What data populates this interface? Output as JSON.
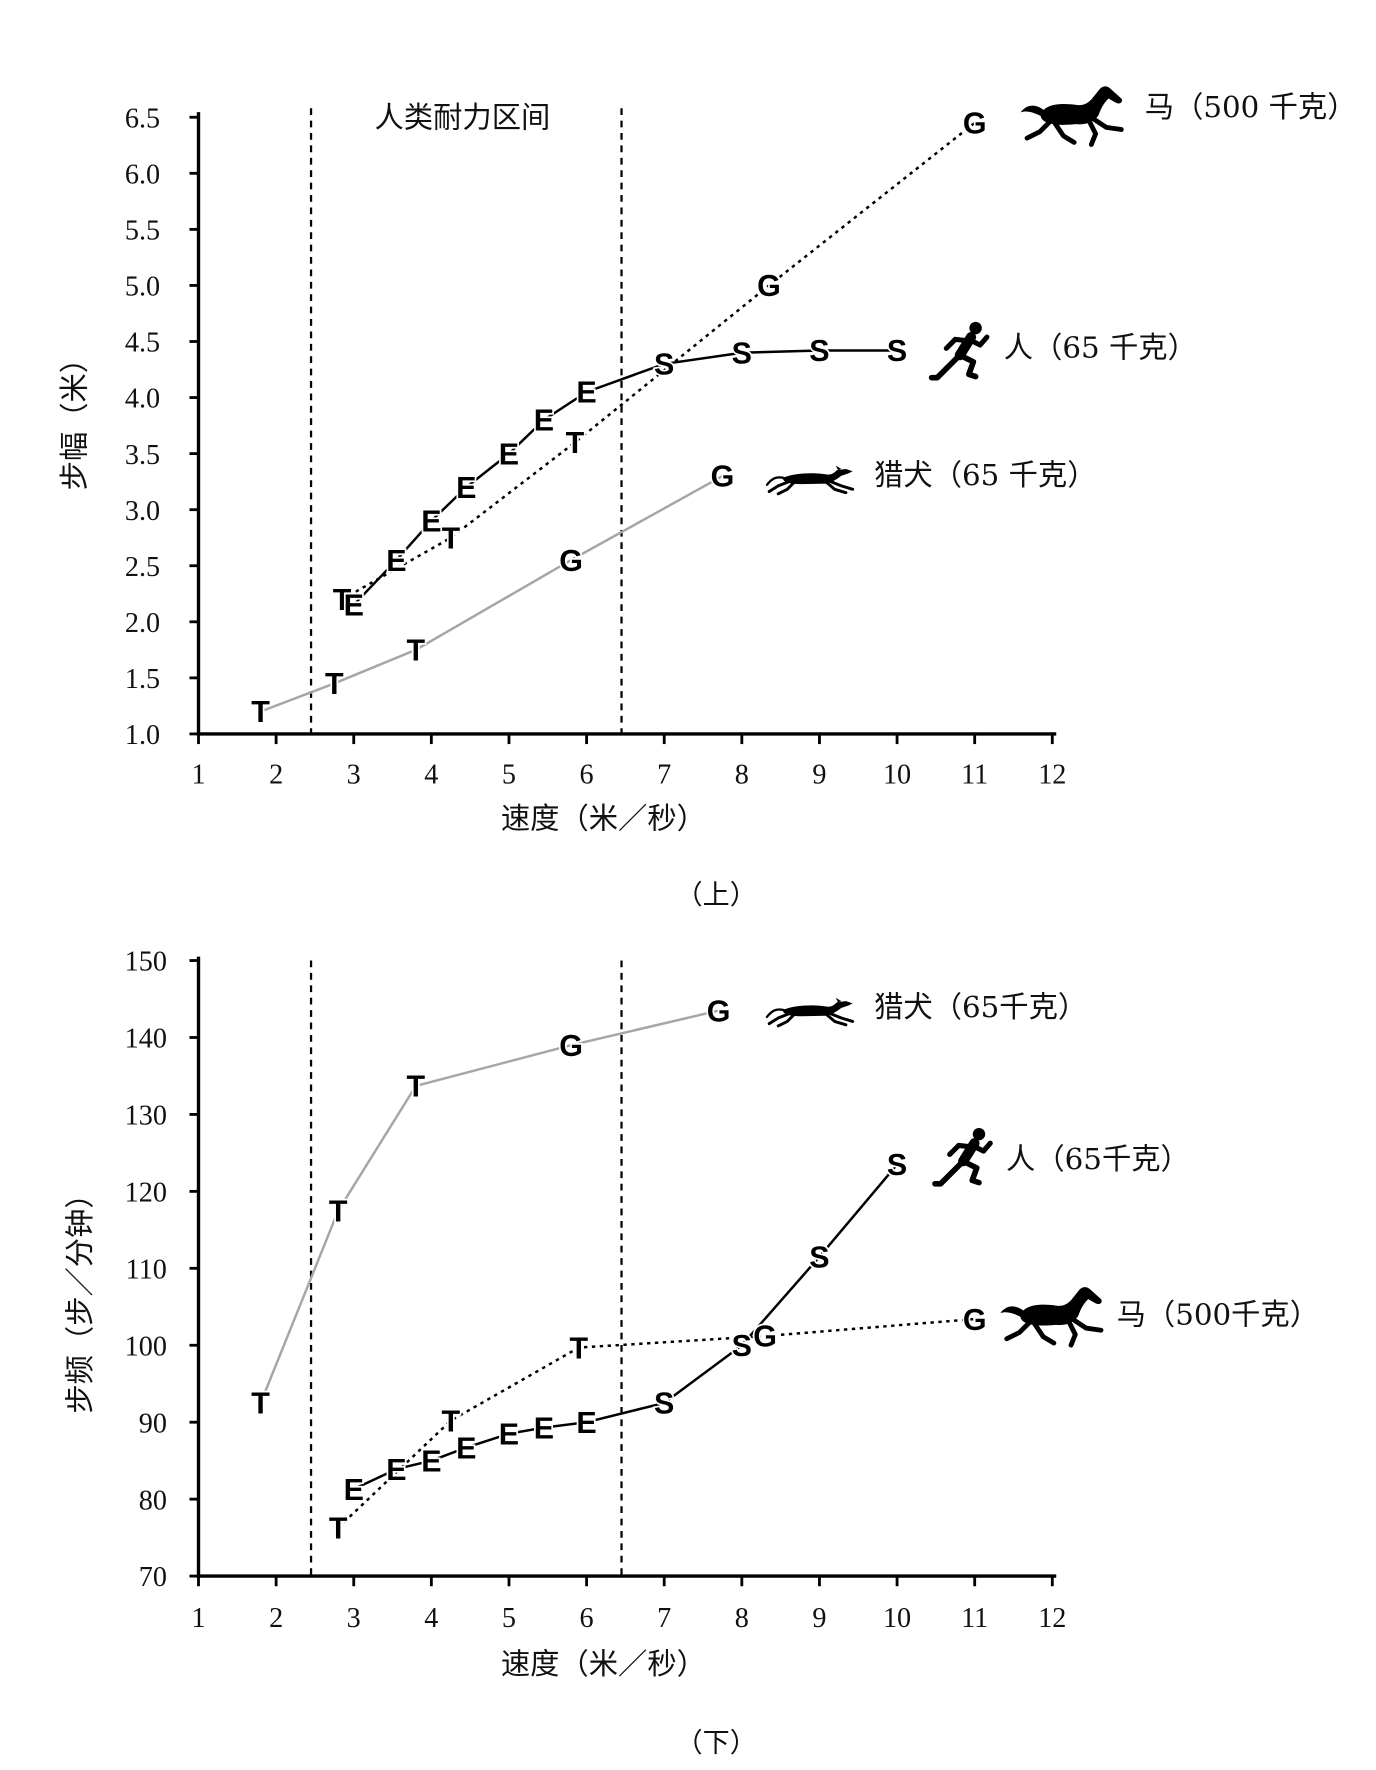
{
  "chart_data": [
    {
      "type": "line",
      "panel_label": "（上）",
      "xlabel": "速度（米／秒）",
      "ylabel": "步幅（米）",
      "xlim": [
        1,
        12
      ],
      "ylim": [
        1.0,
        6.5
      ],
      "xticks": [
        "1",
        "2",
        "3",
        "4",
        "5",
        "6",
        "7",
        "8",
        "9",
        "10",
        "11",
        "12"
      ],
      "yticks": [
        "1.0",
        "1.5",
        "2.0",
        "2.5",
        "3.0",
        "3.5",
        "4.0",
        "4.5",
        "5.0",
        "5.5",
        "6.0",
        "6.5"
      ],
      "grid": false,
      "legend": "inline-right",
      "reference_lines_x": [
        2.45,
        6.45
      ],
      "annotations": [
        "人类耐力区间"
      ],
      "series": [
        {
          "name": "马（500 千克）",
          "color": "#000000",
          "line_style": "dotted",
          "icon": "horse-icon",
          "points": [
            {
              "x": 2.85,
              "y": 2.2,
              "label": "T"
            },
            {
              "x": 4.25,
              "y": 2.75,
              "label": "T"
            },
            {
              "x": 5.85,
              "y": 3.6,
              "label": "T"
            },
            {
              "x": 8.35,
              "y": 5.0,
              "label": "G"
            },
            {
              "x": 11.0,
              "y": 6.45,
              "label": "G"
            }
          ]
        },
        {
          "name": "人（65 千克）",
          "color": "#000000",
          "line_style": "solid",
          "icon": "runner-icon",
          "points": [
            {
              "x": 3.0,
              "y": 2.15,
              "label": "E"
            },
            {
              "x": 3.55,
              "y": 2.55,
              "label": "E"
            },
            {
              "x": 4.0,
              "y": 2.9,
              "label": "E"
            },
            {
              "x": 4.45,
              "y": 3.2,
              "label": "E"
            },
            {
              "x": 5.0,
              "y": 3.5,
              "label": "E"
            },
            {
              "x": 5.45,
              "y": 3.8,
              "label": "E"
            },
            {
              "x": 6.0,
              "y": 4.05,
              "label": "E"
            },
            {
              "x": 7.0,
              "y": 4.3,
              "label": "S"
            },
            {
              "x": 8.0,
              "y": 4.4,
              "label": "S"
            },
            {
              "x": 9.0,
              "y": 4.42,
              "label": "S"
            },
            {
              "x": 10.0,
              "y": 4.42,
              "label": "S"
            }
          ]
        },
        {
          "name": "猎犬（65 千克）",
          "color": "#a6a6a6",
          "line_style": "solid",
          "icon": "greyhound-icon",
          "points": [
            {
              "x": 1.8,
              "y": 1.2,
              "label": "T"
            },
            {
              "x": 2.75,
              "y": 1.45,
              "label": "T"
            },
            {
              "x": 3.8,
              "y": 1.75,
              "label": "T"
            },
            {
              "x": 5.8,
              "y": 2.55,
              "label": "G"
            },
            {
              "x": 7.75,
              "y": 3.3,
              "label": "G"
            }
          ]
        }
      ]
    },
    {
      "type": "line",
      "panel_label": "（下）",
      "xlabel": "速度（米／秒）",
      "ylabel": "步频（步／分钟）",
      "xlim": [
        1,
        12
      ],
      "ylim": [
        70,
        150
      ],
      "xticks": [
        "1",
        "2",
        "3",
        "4",
        "5",
        "6",
        "7",
        "8",
        "9",
        "10",
        "11",
        "12"
      ],
      "yticks": [
        "70",
        "80",
        "90",
        "100",
        "110",
        "120",
        "130",
        "140",
        "150"
      ],
      "grid": false,
      "legend": "inline-right",
      "reference_lines_x": [
        2.45,
        6.45
      ],
      "series": [
        {
          "name": "马（500千克）",
          "color": "#000000",
          "line_style": "dotted",
          "icon": "horse-icon",
          "points": [
            {
              "x": 2.8,
              "y": 76.3,
              "label": "T"
            },
            {
              "x": 4.25,
              "y": 90.2,
              "label": "T"
            },
            {
              "x": 5.9,
              "y": 99.7,
              "label": "T"
            },
            {
              "x": 8.3,
              "y": 101.2,
              "label": "G"
            },
            {
              "x": 11.0,
              "y": 103.4,
              "label": "G"
            }
          ]
        },
        {
          "name": "人（65千克）",
          "color": "#000000",
          "line_style": "solid",
          "icon": "runner-icon",
          "points": [
            {
              "x": 3.0,
              "y": 81.3,
              "label": "E"
            },
            {
              "x": 3.55,
              "y": 83.9,
              "label": "E"
            },
            {
              "x": 4.0,
              "y": 85.0,
              "label": "E"
            },
            {
              "x": 4.45,
              "y": 86.7,
              "label": "E"
            },
            {
              "x": 5.0,
              "y": 88.5,
              "label": "E"
            },
            {
              "x": 5.45,
              "y": 89.3,
              "label": "E"
            },
            {
              "x": 6.0,
              "y": 90.0,
              "label": "E"
            },
            {
              "x": 7.0,
              "y": 92.5,
              "label": "S"
            },
            {
              "x": 8.0,
              "y": 100.0,
              "label": "S"
            },
            {
              "x": 9.0,
              "y": 111.5,
              "label": "S"
            },
            {
              "x": 10.0,
              "y": 123.5,
              "label": "S"
            }
          ]
        },
        {
          "name": "猎犬（65千克）",
          "color": "#a6a6a6",
          "line_style": "solid",
          "icon": "greyhound-icon",
          "points": [
            {
              "x": 1.8,
              "y": 92.5,
              "label": "T"
            },
            {
              "x": 2.8,
              "y": 117.5,
              "label": "T"
            },
            {
              "x": 3.8,
              "y": 133.7,
              "label": "T"
            },
            {
              "x": 5.8,
              "y": 139.0,
              "label": "G"
            },
            {
              "x": 7.7,
              "y": 143.5,
              "label": "G"
            }
          ]
        }
      ]
    }
  ]
}
